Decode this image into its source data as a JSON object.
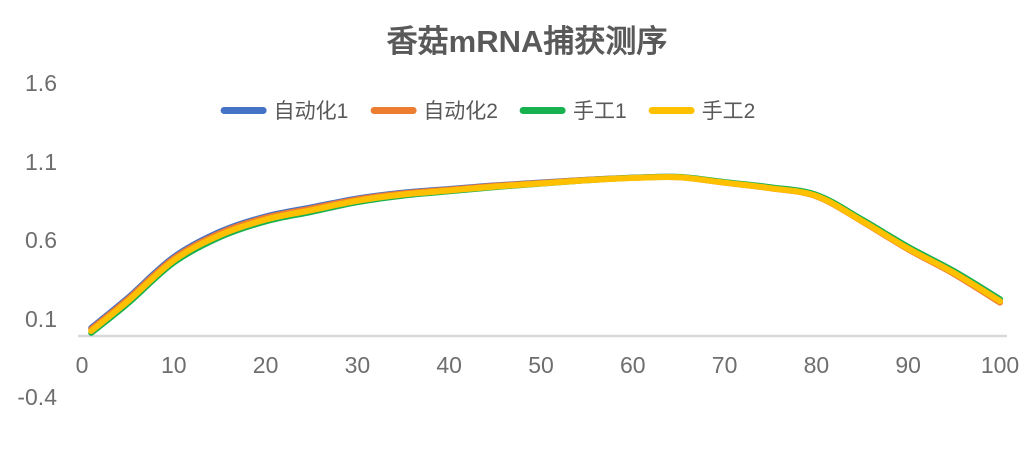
{
  "chart_data": {
    "type": "line",
    "title": "香菇mRNA捕获测序",
    "xlabel": "",
    "ylabel": "",
    "x_range": [
      0,
      100
    ],
    "y_range": [
      -0.4,
      1.6
    ],
    "x_ticks": [
      0,
      10,
      20,
      30,
      40,
      50,
      60,
      70,
      80,
      90,
      100
    ],
    "y_ticks": [
      1.6,
      1.1,
      0.6,
      0.1,
      -0.4
    ],
    "grid": false,
    "legend_position": "top-center",
    "axis_line_color": "#D9D9D9",
    "title_color": "#595959",
    "tick_label_color": "#6E6E6E",
    "x": [
      1,
      5,
      10,
      15,
      20,
      25,
      30,
      35,
      40,
      45,
      50,
      55,
      60,
      65,
      70,
      75,
      80,
      85,
      90,
      95,
      100
    ],
    "series": [
      {
        "name": "自动化1",
        "color": "#4472C4",
        "values": [
          0.04,
          0.232,
          0.492,
          0.652,
          0.75,
          0.808,
          0.865,
          0.902,
          0.925,
          0.948,
          0.966,
          0.984,
          0.997,
          1.001,
          0.966,
          0.931,
          0.881,
          0.721,
          0.546,
          0.391,
          0.211
        ]
      },
      {
        "name": "自动化2",
        "color": "#ED7D31",
        "values": [
          0.032,
          0.223,
          0.483,
          0.643,
          0.742,
          0.801,
          0.859,
          0.897,
          0.921,
          0.945,
          0.964,
          0.983,
          0.996,
          1.0,
          0.965,
          0.929,
          0.878,
          0.717,
          0.54,
          0.383,
          0.201
        ]
      },
      {
        "name": "手工1",
        "color": "#17B150",
        "values": [
          0.008,
          0.196,
          0.456,
          0.617,
          0.718,
          0.779,
          0.841,
          0.883,
          0.91,
          0.937,
          0.959,
          0.98,
          0.996,
          1.002,
          0.969,
          0.936,
          0.888,
          0.73,
          0.556,
          0.402,
          0.223
        ]
      },
      {
        "name": "手工2",
        "color": "#FFC000",
        "values": [
          0.02,
          0.21,
          0.47,
          0.63,
          0.73,
          0.79,
          0.85,
          0.89,
          0.915,
          0.94,
          0.96,
          0.98,
          0.995,
          1.0,
          0.965,
          0.93,
          0.88,
          0.72,
          0.545,
          0.39,
          0.21
        ]
      }
    ]
  }
}
